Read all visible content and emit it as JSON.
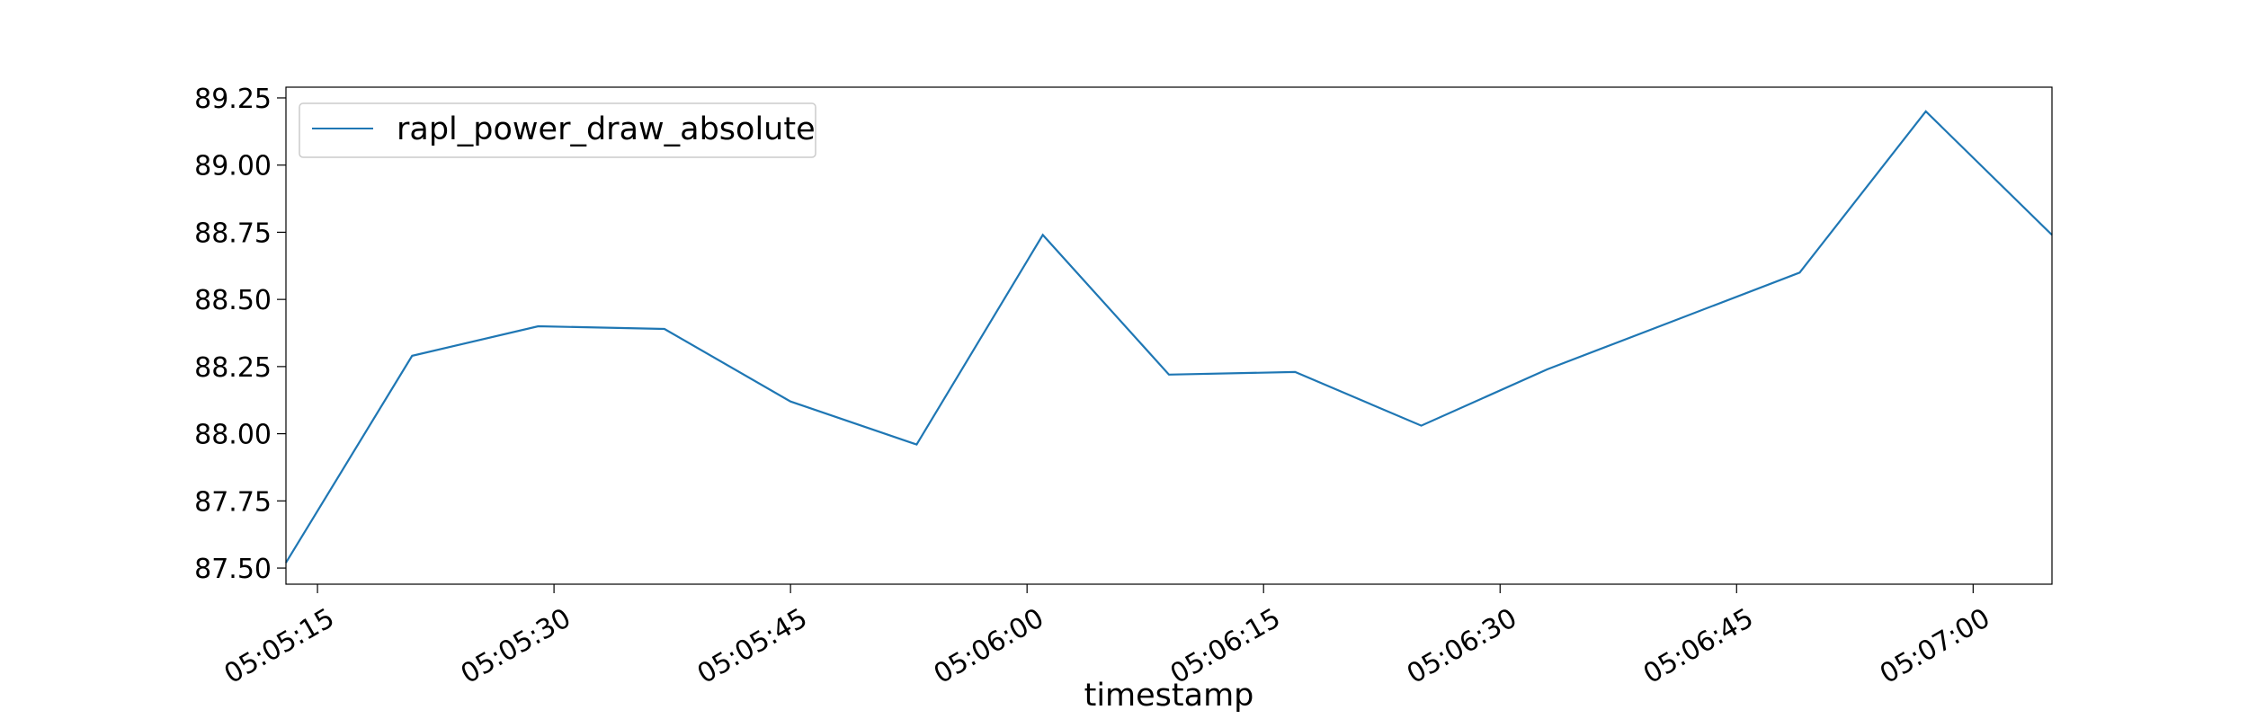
{
  "chart_data": {
    "type": "line",
    "title": "",
    "xlabel": "timestamp",
    "ylabel": "",
    "x": [
      "05:05:13",
      "05:05:21",
      "05:05:29",
      "05:05:37",
      "05:05:45",
      "05:05:53",
      "05:06:01",
      "05:06:09",
      "05:06:17",
      "05:06:25",
      "05:06:33",
      "05:06:41",
      "05:06:49",
      "05:06:57",
      "05:07:05"
    ],
    "series": [
      {
        "name": "rapl_power_draw_absolute",
        "color": "#1f77b4",
        "values": [
          87.52,
          88.29,
          88.4,
          88.39,
          88.12,
          87.96,
          88.74,
          88.22,
          88.23,
          88.03,
          88.24,
          88.42,
          88.6,
          89.2,
          88.74
        ]
      }
    ],
    "xlim": [
      "05:05:13",
      "05:07:05"
    ],
    "ylim": [
      87.44,
      89.29
    ],
    "x_ticks": [
      "05:05:15",
      "05:05:30",
      "05:05:45",
      "05:06:00",
      "05:06:15",
      "05:06:30",
      "05:06:45",
      "05:07:00"
    ],
    "y_ticks": [
      "87.50",
      "87.75",
      "88.00",
      "88.25",
      "88.50",
      "88.75",
      "89.00",
      "89.25"
    ],
    "grid": false,
    "legend": "top-left"
  }
}
